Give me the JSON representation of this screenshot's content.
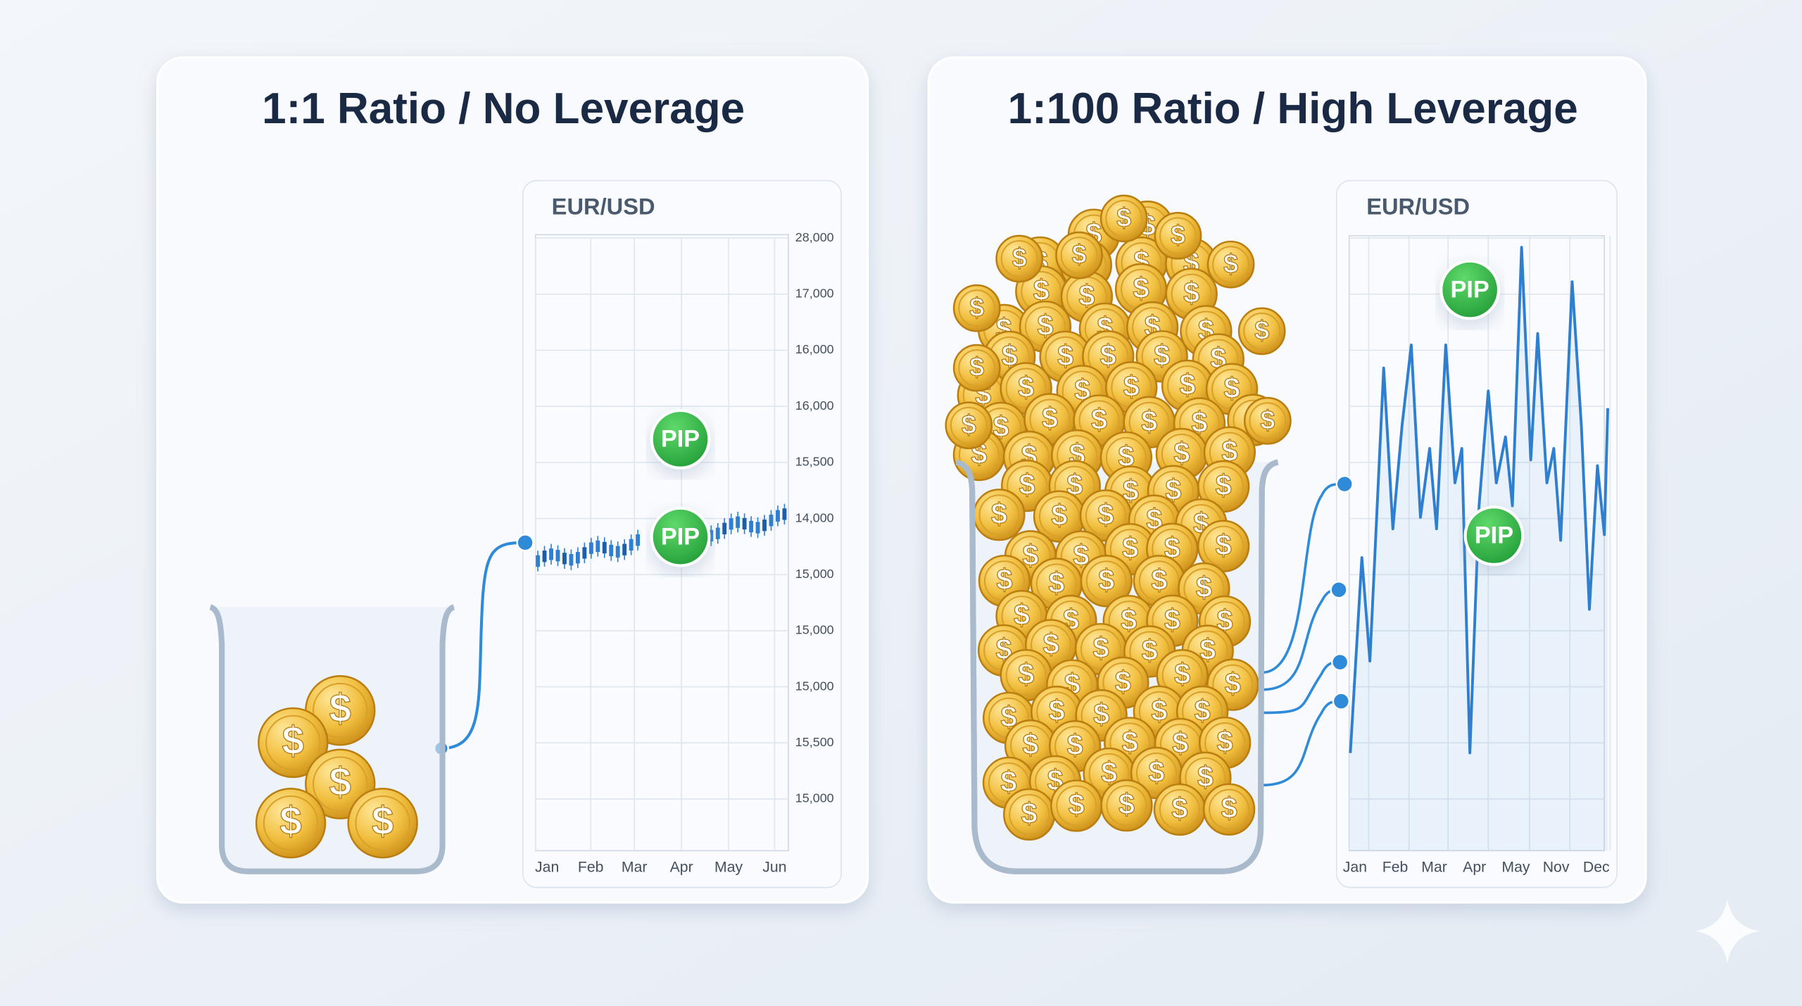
{
  "coin_symbol": "$",
  "panels": [
    {
      "title": "1:1 Ratio / No Leverage",
      "chart": {
        "label": "EUR/USD",
        "y_labels": [
          "28,000",
          "17,000",
          "16,000",
          "16,000",
          "15,500",
          "14,000",
          "15,000",
          "15,000",
          "15,000",
          "15,500",
          "15,000"
        ],
        "x_labels": [
          "Jan",
          "Feb",
          "Mar",
          "Apr",
          "May",
          "Jun"
        ],
        "badges": [
          "PIP",
          "PIP"
        ]
      }
    },
    {
      "title": "1:100 Ratio / High Leverage",
      "chart": {
        "label": "EUR/USD",
        "x_labels": [
          "Jan",
          "Feb",
          "Mar",
          "Apr",
          "May",
          "Nov",
          "Dec"
        ],
        "badges": [
          "PIP",
          "PIP"
        ]
      }
    }
  ]
}
